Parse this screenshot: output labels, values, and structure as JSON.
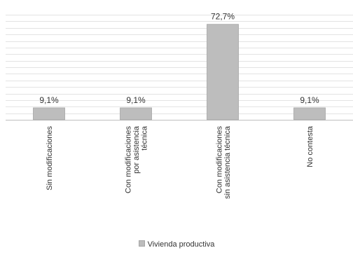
{
  "chart_data": {
    "type": "bar",
    "categories": [
      [
        "Sin modificaciones"
      ],
      [
        "Con modificaciones",
        "por asistencia",
        "técnica"
      ],
      [
        "Con modificaciones",
        "sin asistencia técnica"
      ],
      [
        "No contesta"
      ]
    ],
    "series": [
      {
        "name": "Vivienda productiva",
        "values": [
          9.1,
          9.1,
          72.7,
          9.1
        ],
        "value_labels": [
          "9,1%",
          "9,1%",
          "72,7%",
          "9,1%"
        ]
      }
    ],
    "ylim": [
      0,
      80
    ],
    "y_gridline_step": 5,
    "y_axis_labels_shown": false,
    "grid": true,
    "legend_position": "bottom-center",
    "colors": {
      "bar_fill": "#bdbdbd",
      "bar_stroke": "#a6a6a6",
      "grid": "#e3e3e3",
      "axis": "#bfbfbf",
      "text": "#333333"
    }
  }
}
